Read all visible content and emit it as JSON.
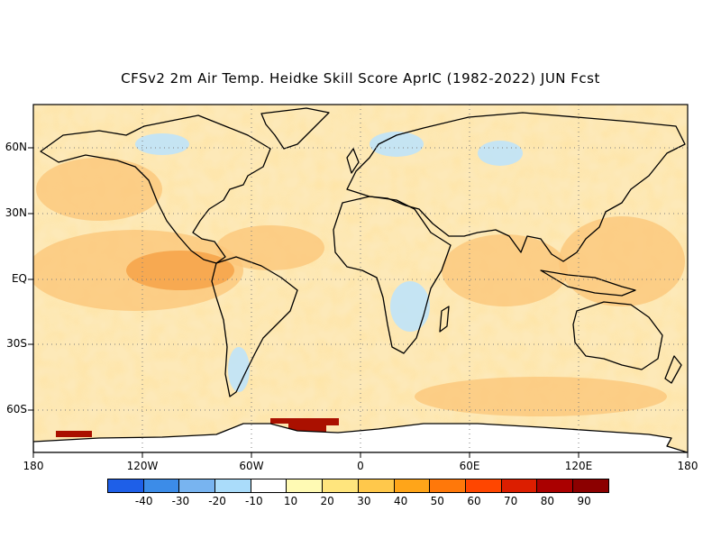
{
  "title": "CFSv2 2m Air Temp. Heidke Skill Score AprIC (1982-2022) JUN Fcst",
  "latitude_labels": [
    "60N",
    "30N",
    "EQ",
    "30S",
    "60S"
  ],
  "longitude_labels": [
    "180",
    "120W",
    "60W",
    "0",
    "60E",
    "120E",
    "180"
  ],
  "colorbar": {
    "labels": [
      "-40",
      "-30",
      "-20",
      "-10",
      "10",
      "20",
      "30",
      "40",
      "50",
      "60",
      "70",
      "80",
      "90"
    ],
    "colors": [
      "#1e5fe8",
      "#3c8ce8",
      "#78b4f0",
      "#aadcfa",
      "#ffffff",
      "#fffab4",
      "#ffe57d",
      "#ffc84b",
      "#ffa519",
      "#ff780a",
      "#ff4600",
      "#dc1e00",
      "#aa0000",
      "#8c0000"
    ]
  },
  "map": {
    "background_color": "#ffffff",
    "coastline_color": "#000000",
    "grid_style": "dotted",
    "ocean_tint": "#fde9b8",
    "warm_tint": "#fbc77a",
    "strong_tint": "#f5a043",
    "cool_tint": "#bfe3fa",
    "antarctic_high": "#aa1000"
  }
}
